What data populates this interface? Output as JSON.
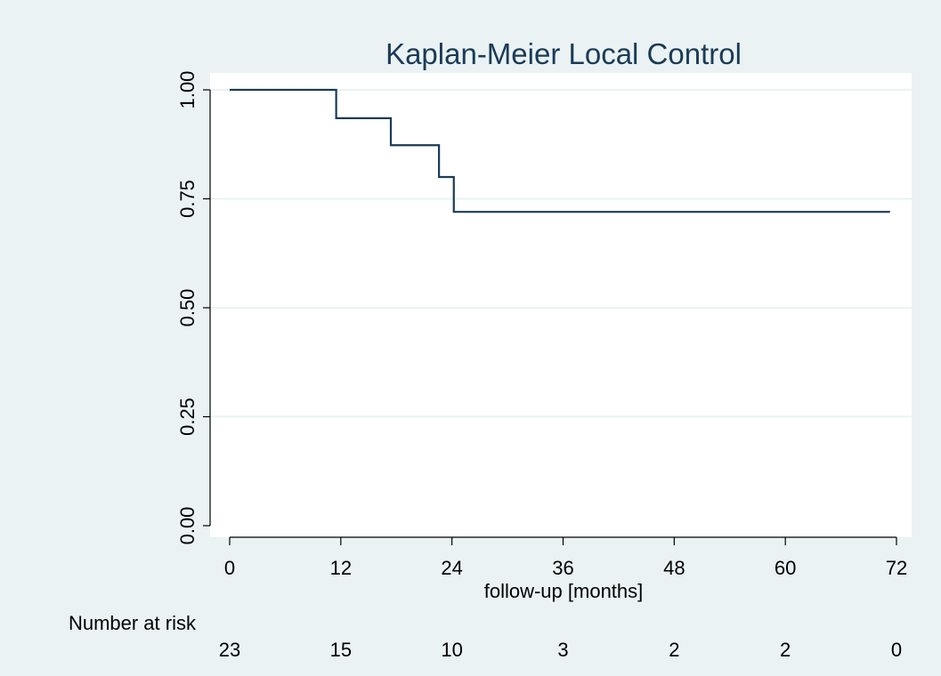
{
  "chart_data": {
    "type": "line",
    "title": "Kaplan-Meier Local Control",
    "xlabel": "follow-up [months]",
    "ylabel": "",
    "xlim": [
      0,
      72
    ],
    "ylim": [
      0,
      1
    ],
    "xticks": [
      "0",
      "12",
      "24",
      "36",
      "48",
      "60",
      "72"
    ],
    "xtick_values": [
      0,
      12,
      24,
      36,
      48,
      60,
      72
    ],
    "yticks": [
      "0.00",
      "0.25",
      "0.50",
      "0.75",
      "1.00"
    ],
    "ytick_values": [
      0,
      0.25,
      0.5,
      0.75,
      1.0
    ],
    "grid": true,
    "step_series": {
      "x": [
        0,
        11.5,
        17.4,
        22.6,
        24.2,
        71.3
      ],
      "y": [
        1.0,
        0.935,
        0.873,
        0.8,
        0.72,
        0.72
      ]
    },
    "risk_table": {
      "label": "Number at risk",
      "times": [
        0,
        12,
        24,
        36,
        48,
        60,
        72
      ],
      "counts": [
        "23",
        "15",
        "10",
        "3",
        "2",
        "2",
        "0"
      ]
    },
    "colors": {
      "background": "#eaf2f3",
      "plot_area": "#ffffff",
      "line": "#1a3b57",
      "title": "#1a3b57",
      "grid": "#eaf2f3"
    }
  }
}
